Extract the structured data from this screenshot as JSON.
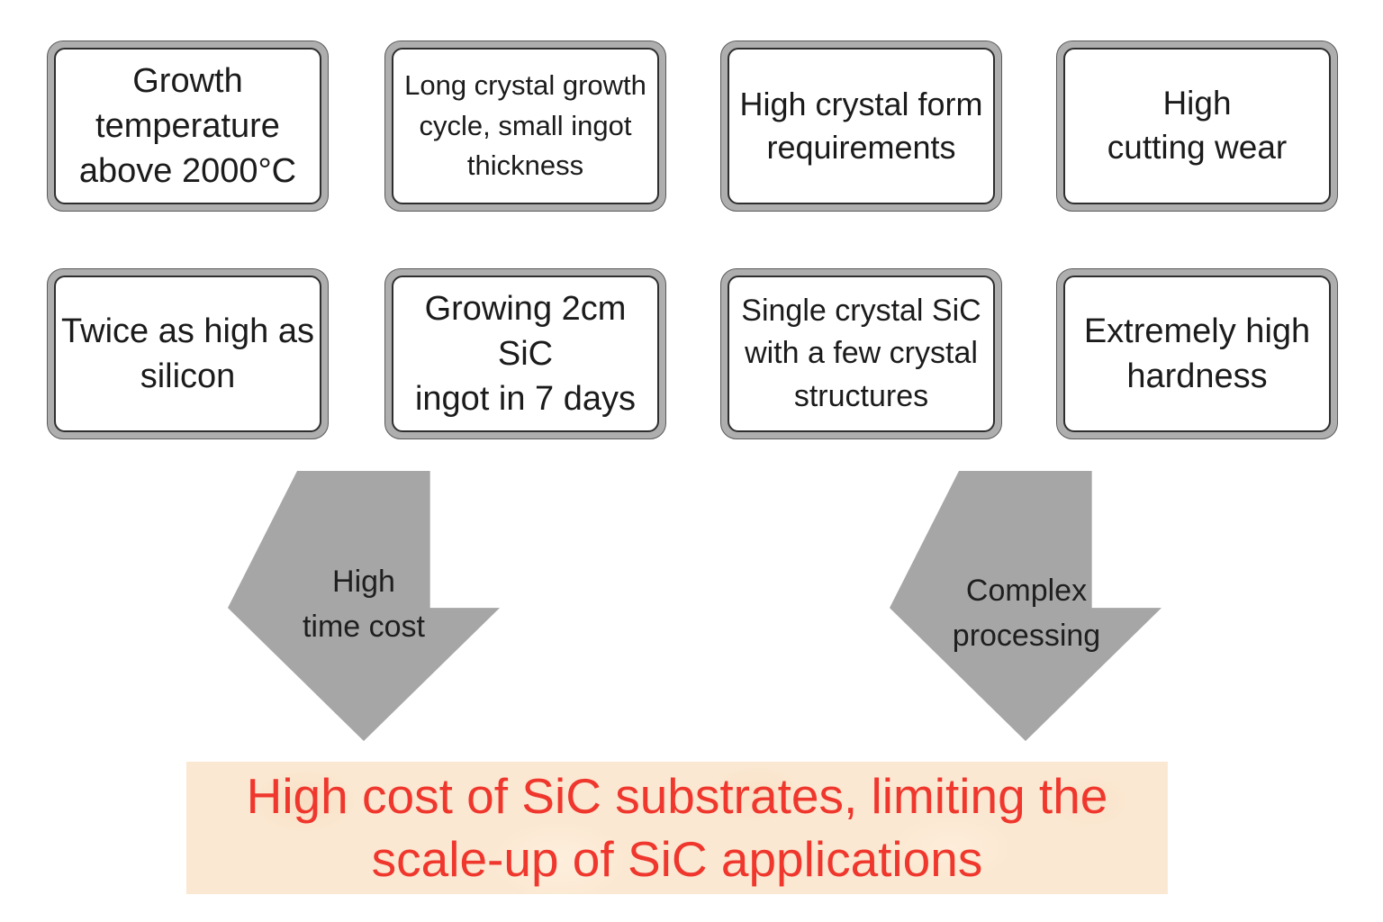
{
  "colors": {
    "card_ring": "#aeaeae",
    "card_fill": "#ffffff",
    "card_border": "#2e2e2e",
    "arrow_fill": "#a6a6a6",
    "text": "#1b1b1b",
    "banner_bg": "#fbe8d2",
    "banner_text": "#ef372d"
  },
  "cards": [
    {
      "label": "Growth\ntemperature\nabove 2000°C"
    },
    {
      "label": "Long crystal growth\ncycle, small ingot\nthickness"
    },
    {
      "label": "High crystal form\nrequirements"
    },
    {
      "label": "High\ncutting wear"
    },
    {
      "label": "Twice as high as\nsilicon"
    },
    {
      "label": "Growing 2cm SiC\ningot in 7 days"
    },
    {
      "label": "Single crystal SiC\nwith a few crystal\nstructures"
    },
    {
      "label": "Extremely high\nhardness"
    }
  ],
  "arrows": [
    {
      "label": "High\ntime cost"
    },
    {
      "label": "Complex\nprocessing"
    }
  ],
  "banner": {
    "text": "High cost of SiC substrates, limiting the\nscale-up of SiC applications"
  }
}
